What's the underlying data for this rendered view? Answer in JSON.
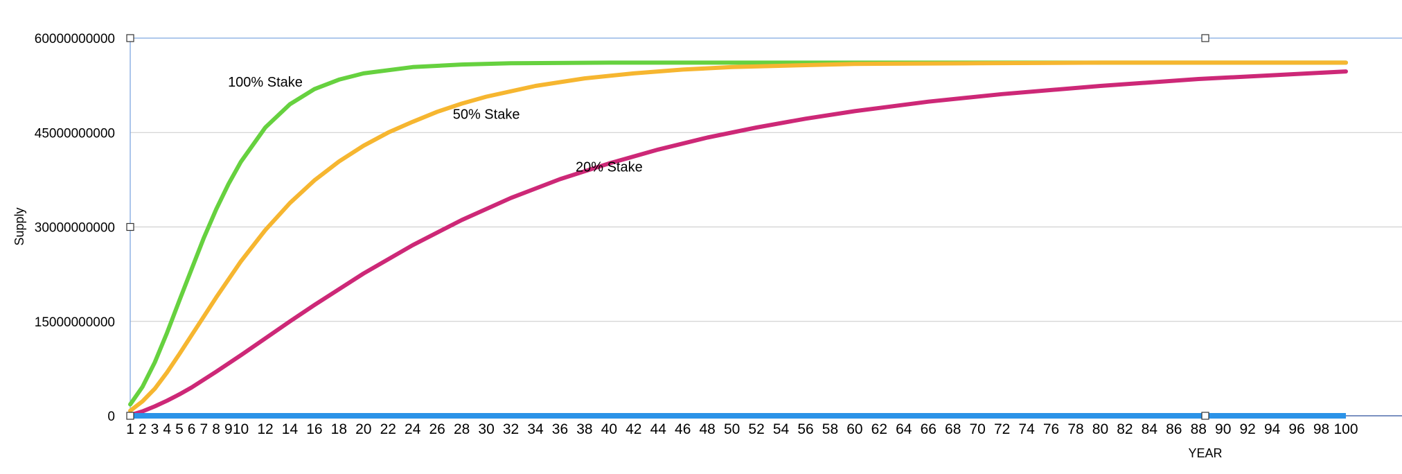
{
  "chart_data": {
    "type": "line",
    "xlabel": "YEAR",
    "ylabel": "Supply",
    "ylim": [
      0,
      60000000000
    ],
    "y_ticks": [
      "0",
      "15000000000",
      "30000000000",
      "45000000000",
      "60000000000"
    ],
    "x_ticks": [
      "1",
      "2",
      "3",
      "4",
      "5",
      "6",
      "7",
      "8",
      "9",
      "10",
      "12",
      "14",
      "16",
      "18",
      "20",
      "22",
      "24",
      "26",
      "28",
      "30",
      "32",
      "34",
      "36",
      "38",
      "40",
      "42",
      "44",
      "46",
      "48",
      "50",
      "52",
      "54",
      "56",
      "58",
      "60",
      "62",
      "64",
      "66",
      "68",
      "70",
      "72",
      "74",
      "76",
      "78",
      "80",
      "82",
      "84",
      "86",
      "88",
      "90",
      "92",
      "94",
      "96",
      "98",
      "100"
    ],
    "grid": true,
    "legend": "inline labels",
    "series": [
      {
        "name": "100% Stake",
        "color": "#66d13f",
        "x": [
          1,
          2,
          3,
          4,
          5,
          6,
          7,
          8,
          9,
          10,
          12,
          14,
          16,
          18,
          20,
          24,
          28,
          32,
          40,
          50,
          60,
          80,
          100
        ],
        "values": [
          1800000000,
          4600000000,
          8500000000,
          13200000000,
          18300000000,
          23300000000,
          28300000000,
          32800000000,
          36800000000,
          40300000000,
          45800000000,
          49500000000,
          51900000000,
          53400000000,
          54400000000,
          55400000000,
          55800000000,
          56000000000,
          56100000000,
          56100000000,
          56100000000,
          56100000000,
          56100000000
        ]
      },
      {
        "name": "50% Stake",
        "color": "#f6b630",
        "x": [
          1,
          2,
          3,
          4,
          5,
          6,
          7,
          8,
          10,
          12,
          14,
          16,
          18,
          20,
          22,
          24,
          26,
          28,
          30,
          34,
          38,
          42,
          46,
          50,
          60,
          70,
          80,
          100
        ],
        "values": [
          800000000,
          2300000000,
          4300000000,
          6900000000,
          9800000000,
          12800000000,
          15800000000,
          18800000000,
          24500000000,
          29500000000,
          33800000000,
          37400000000,
          40400000000,
          42900000000,
          45000000000,
          46700000000,
          48300000000,
          49600000000,
          50700000000,
          52400000000,
          53600000000,
          54400000000,
          55000000000,
          55400000000,
          55900000000,
          56000000000,
          56100000000,
          56100000000
        ]
      },
      {
        "name": "20% Stake",
        "color": "#cd2877",
        "x": [
          1,
          2,
          3,
          4,
          5,
          6,
          8,
          10,
          12,
          14,
          16,
          18,
          20,
          24,
          28,
          32,
          36,
          40,
          44,
          48,
          52,
          56,
          60,
          66,
          72,
          80,
          88,
          94,
          100
        ],
        "values": [
          100000000,
          700000000,
          1500000000,
          2400000000,
          3400000000,
          4500000000,
          7000000000,
          9600000000,
          12300000000,
          15000000000,
          17600000000,
          20100000000,
          22600000000,
          27100000000,
          31100000000,
          34600000000,
          37600000000,
          40100000000,
          42300000000,
          44200000000,
          45800000000,
          47200000000,
          48400000000,
          49900000000,
          51100000000,
          52400000000,
          53500000000,
          54100000000,
          54700000000
        ]
      },
      {
        "name": "",
        "color": "#2b93e8",
        "x": [
          1,
          100
        ],
        "values": [
          0,
          0
        ]
      }
    ],
    "series_labels": [
      {
        "series": "100% Stake",
        "x": 12,
        "y": 52300000000
      },
      {
        "series": "50% Stake",
        "x": 30,
        "y": 47200000000
      },
      {
        "series": "20% Stake",
        "x": 40,
        "y": 38800000000
      }
    ]
  }
}
